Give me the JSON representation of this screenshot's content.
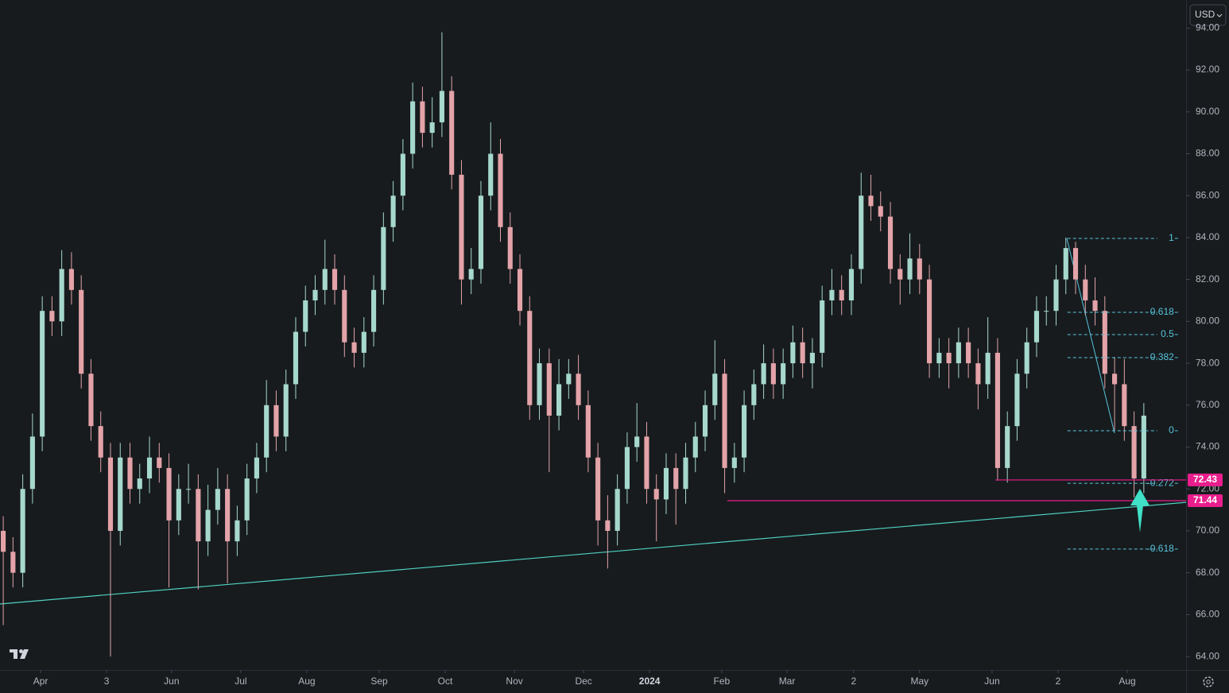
{
  "chart_data": {
    "type": "candlestick",
    "currency": "USD",
    "up_color": "#a6d8cd",
    "down_color": "#e3a3a8",
    "xlim": [
      0,
      365
    ],
    "ylim": [
      63.36,
      95.34
    ],
    "x": [
      1,
      4,
      7,
      10,
      13,
      16,
      19,
      22,
      25,
      28,
      31,
      34,
      37,
      40,
      43,
      46,
      49,
      52,
      55,
      58,
      61,
      64,
      67,
      70,
      73,
      76,
      79,
      82,
      85,
      88,
      91,
      94,
      97,
      100,
      103,
      106,
      109,
      112,
      115,
      118,
      121,
      124,
      127,
      130,
      133,
      136,
      139,
      142,
      145,
      148,
      151,
      154,
      157,
      160,
      163,
      166,
      169,
      172,
      175,
      178,
      181,
      184,
      187,
      190,
      193,
      196,
      199,
      202,
      205,
      208,
      211,
      214,
      217,
      220,
      223,
      226,
      229,
      232,
      235,
      238,
      241,
      244,
      247,
      250,
      253,
      256,
      259,
      262,
      265,
      268,
      271,
      274,
      277,
      280,
      283,
      286,
      289,
      292,
      295,
      298,
      301,
      304,
      307,
      310,
      313,
      316,
      319,
      322,
      325,
      328,
      331,
      334,
      337,
      340,
      343,
      346,
      349,
      352
    ],
    "open": [
      70,
      69,
      68,
      72,
      74.5,
      80.5,
      80,
      82.5,
      81.5,
      77.5,
      75,
      73.5,
      70,
      73.5,
      72,
      72.5,
      73.5,
      73,
      70.5,
      72,
      72,
      69.5,
      71,
      72,
      69.5,
      70.5,
      72.5,
      73.5,
      76,
      74.5,
      77,
      79.5,
      81,
      81.5,
      82.5,
      81.5,
      79,
      78.5,
      79.5,
      81.5,
      84.5,
      86,
      88,
      90.5,
      89,
      89.5,
      91,
      87,
      82,
      82.5,
      86,
      88,
      84.5,
      82.5,
      80.5,
      76,
      78,
      75.5,
      77,
      77.5,
      76,
      73.5,
      70.5,
      70,
      72,
      74,
      74.5,
      72,
      71.5,
      73,
      72,
      73.5,
      74.5,
      76,
      77.5,
      73,
      73.5,
      76,
      77,
      78,
      77,
      78,
      79,
      78,
      78.5,
      81,
      81.5,
      81,
      82.5,
      86,
      85.5,
      85,
      82.5,
      82,
      83,
      82,
      78,
      78.5,
      78,
      79,
      78,
      77,
      78.5,
      73,
      75,
      77.5,
      79,
      80.5,
      80.5,
      82,
      83.5,
      82,
      81,
      80.5,
      77.5,
      77,
      75,
      72.5
    ],
    "high": [
      70.7,
      69.7,
      72.7,
      75.6,
      81.2,
      81.2,
      83.4,
      83.3,
      82.2,
      78.2,
      75.7,
      74.2,
      74.2,
      74.2,
      73.2,
      74.5,
      74.2,
      73.7,
      72.7,
      73.2,
      72.7,
      72.2,
      73,
      72.7,
      71.2,
      73.2,
      74.2,
      77.2,
      76.7,
      77.7,
      80.2,
      81.7,
      82.2,
      83.9,
      83.2,
      82.2,
      79.7,
      80.2,
      82.2,
      85.2,
      86.7,
      88.7,
      91.4,
      91.2,
      90.7,
      93.8,
      91.7,
      87.7,
      83.5,
      86.7,
      89.5,
      88.7,
      85.2,
      83.2,
      81.2,
      78.7,
      78.7,
      78.2,
      78.2,
      78.4,
      76.7,
      74.2,
      71.7,
      72.7,
      74.7,
      76.1,
      75.2,
      72.7,
      73.7,
      73.7,
      74.2,
      75.2,
      76.7,
      79.1,
      78.2,
      74.2,
      76.7,
      77.7,
      78.9,
      78.7,
      78.7,
      79.8,
      79.7,
      79.2,
      81.7,
      82.5,
      82.2,
      83.2,
      87.1,
      87,
      86.2,
      85.7,
      83.2,
      84.2,
      83.7,
      82.7,
      79.2,
      79.2,
      79.7,
      79.7,
      78.7,
      80.2,
      79.2,
      75.7,
      78.2,
      79.7,
      81.2,
      81.2,
      82.7,
      84,
      83.8,
      82.7,
      82.1,
      81.2,
      78.3,
      78.2,
      75.7,
      76.1
    ],
    "low": [
      65.5,
      67.3,
      67.3,
      71.3,
      73.8,
      79.3,
      79.3,
      80.8,
      76.8,
      74.3,
      72.8,
      64,
      69.3,
      71.3,
      71.3,
      71.8,
      72.3,
      67.3,
      69.8,
      71.3,
      67.2,
      68.8,
      70.3,
      67.5,
      68.8,
      69.8,
      71.8,
      72.8,
      73.8,
      73.8,
      76.3,
      78.8,
      80.3,
      80.8,
      80.8,
      78.3,
      77.8,
      77.8,
      78.8,
      80.8,
      83.8,
      85.3,
      87.3,
      88.3,
      88.3,
      88.8,
      86.3,
      80.8,
      81.3,
      81.8,
      85.3,
      83.8,
      81.8,
      79.8,
      75.3,
      75.3,
      72.8,
      74.8,
      76.3,
      75.3,
      72.8,
      69.3,
      68.2,
      69.3,
      71.3,
      73.3,
      71.3,
      69.5,
      70.8,
      70.3,
      71.3,
      72.8,
      73.8,
      75.3,
      71.8,
      72.3,
      72.8,
      75.3,
      76.3,
      76.3,
      76.3,
      77.3,
      77.3,
      76.8,
      77.8,
      80.3,
      80.3,
      80.3,
      81.8,
      84.8,
      84.3,
      81.8,
      80.8,
      81.3,
      81.3,
      77.3,
      77.3,
      76.8,
      77.3,
      77.3,
      75.8,
      76.3,
      72.4,
      72.3,
      74.3,
      76.8,
      78.3,
      79.8,
      79.8,
      81.3,
      81.3,
      80.3,
      79.8,
      76.8,
      74.8,
      74.3,
      71.6,
      71.8
    ],
    "close": [
      69,
      68,
      72,
      74.5,
      80.5,
      80,
      82.5,
      81.5,
      77.5,
      75,
      73.5,
      70,
      73.5,
      72,
      72.5,
      73.5,
      73,
      70.5,
      72,
      72,
      69.5,
      71,
      72,
      69.5,
      70.5,
      72.5,
      73.5,
      76,
      74.5,
      77,
      79.5,
      81,
      81.5,
      82.5,
      81.5,
      79,
      78.5,
      79.5,
      81.5,
      84.5,
      86,
      88,
      90.5,
      89,
      89.5,
      91,
      87,
      82,
      82.5,
      86,
      88,
      84.5,
      82.5,
      80.5,
      76,
      78,
      75.5,
      77,
      77.5,
      76,
      73.5,
      70.5,
      70,
      72,
      74,
      74.5,
      72,
      71.5,
      73,
      72,
      73.5,
      74.5,
      76,
      77.5,
      73,
      73.5,
      76,
      77,
      78,
      77,
      78,
      79,
      78,
      78.5,
      81,
      81.5,
      81,
      82.5,
      86,
      85.5,
      85,
      82.5,
      82,
      83,
      82,
      78,
      78.5,
      78,
      79,
      78,
      77,
      78.5,
      73,
      75,
      77.5,
      79,
      80.5,
      80.5,
      82,
      83.5,
      82,
      81,
      80.5,
      77.5,
      77,
      75,
      72.5,
      75.5
    ],
    "yticks": [
      {
        "value": 64,
        "label": "64.00"
      },
      {
        "value": 66,
        "label": "66.00"
      },
      {
        "value": 68,
        "label": "68.00"
      },
      {
        "value": 70,
        "label": "70.00"
      },
      {
        "value": 72,
        "label": "72.00"
      },
      {
        "value": 74,
        "label": "74.00"
      },
      {
        "value": 76,
        "label": "76.00"
      },
      {
        "value": 78,
        "label": "78.00"
      },
      {
        "value": 80,
        "label": "80.00"
      },
      {
        "value": 82,
        "label": "82.00"
      },
      {
        "value": 84,
        "label": "84.00"
      },
      {
        "value": 86,
        "label": "86.00"
      },
      {
        "value": 88,
        "label": "88.00"
      },
      {
        "value": 90,
        "label": "90.00"
      },
      {
        "value": 92,
        "label": "92.00"
      },
      {
        "value": 94,
        "label": "94.00"
      }
    ],
    "xticks": [
      {
        "value": 12.5,
        "label": "Apr"
      },
      {
        "value": 32.8,
        "label": "3"
      },
      {
        "value": 52.8,
        "label": "Jun"
      },
      {
        "value": 74.1,
        "label": "Jul"
      },
      {
        "value": 94.4,
        "label": "Aug"
      },
      {
        "value": 116.7,
        "label": "Sep"
      },
      {
        "value": 137,
        "label": "Oct"
      },
      {
        "value": 158.3,
        "label": "Nov"
      },
      {
        "value": 179.6,
        "label": "Dec"
      },
      {
        "value": 199.9,
        "label": "2024"
      },
      {
        "value": 222.1,
        "label": "Feb"
      },
      {
        "value": 242.2,
        "label": "Mar"
      },
      {
        "value": 262.7,
        "label": "2"
      },
      {
        "value": 283,
        "label": "May"
      },
      {
        "value": 305.3,
        "label": "Jun"
      },
      {
        "value": 325.6,
        "label": "2"
      },
      {
        "value": 346.9,
        "label": "Aug"
      }
    ],
    "trendline": {
      "x": [
        0,
        365
      ],
      "y": [
        66.51,
        71.36
      ],
      "color": "#4fd1c0"
    },
    "hlines": [
      {
        "price": 72.43,
        "x_start": 306.3,
        "color": "#e91e8c"
      },
      {
        "price": 71.44,
        "x_start": 223.8,
        "color": "#e91e8c"
      }
    ],
    "fib": {
      "x": [
        328.5,
        363
      ],
      "color": "#58c4dc",
      "levels": [
        {
          "ratio": 1,
          "price": 83.96
        },
        {
          "ratio": 0.618,
          "price": 80.43
        },
        {
          "ratio": 0.5,
          "price": 79.37
        },
        {
          "ratio": 0.382,
          "price": 78.27
        },
        {
          "ratio": 0,
          "price": 74.78
        },
        {
          "ratio": -0.272,
          "price": 72.27
        },
        {
          "ratio": -0.618,
          "price": 69.13
        }
      ]
    }
  }
}
